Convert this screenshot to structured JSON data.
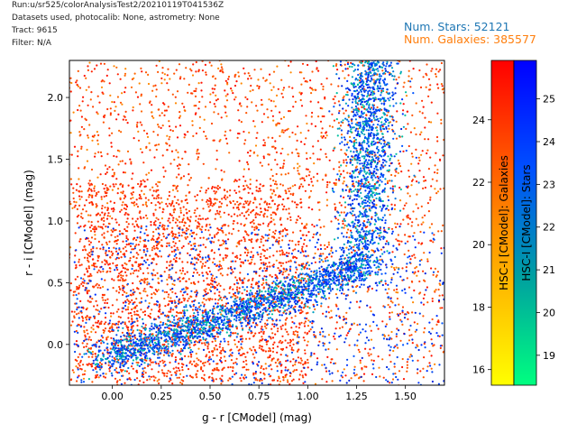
{
  "header": {
    "run": "Run:u/sr525/colorAnalysisTest2/20210119T041536Z",
    "datasets": "Datasets used, photocalib: None, astrometry: None",
    "tract": "Tract: 9615",
    "filter": "Filter: N/A"
  },
  "counts": {
    "stars": "Num. Stars: 52121",
    "galaxies": "Num. Galaxies: 385577",
    "stars_color": "#1f77b4",
    "galaxies_color": "#ff7f0e"
  },
  "chart_data": {
    "type": "scatter",
    "xlabel": "g - r [CModel] (mag)",
    "ylabel": "r - i [CModel] (mag)",
    "xlim": [
      -0.22,
      1.7
    ],
    "ylim": [
      -0.33,
      2.3
    ],
    "xticks": [
      "0.00",
      "0.25",
      "0.50",
      "0.75",
      "1.00",
      "1.25",
      "1.50"
    ],
    "yticks": [
      "0.0",
      "0.5",
      "1.0",
      "1.5",
      "2.0"
    ],
    "series": [
      {
        "name": "Galaxies",
        "colormap": [
          "#ffff00",
          "#ff8c00",
          "#ff0000"
        ],
        "distribution": "broad cloud, densest at g-r -0.2 to 1.0, r-i -0.3 to 1.5"
      },
      {
        "name": "Stars",
        "colormap": [
          "#00ff80",
          "#00a0a0",
          "#0050ff",
          "#0000ff"
        ],
        "distribution": "stellar locus rising from (0.0, -0.1) to (1.3, 0.6), then vertical branch at g-r ~1.3-1.4 up to r-i 2.3"
      }
    ],
    "colorbars": [
      {
        "label": "HSC-I [CModel]: Galaxies",
        "range": [
          15.5,
          25.9
        ],
        "ticks": [
          "16",
          "18",
          "20",
          "22",
          "24"
        ],
        "colors": [
          "#ffff00",
          "#ff8c00",
          "#ff0000"
        ]
      },
      {
        "label": "HSC-I [CModel]: Stars",
        "range": [
          18.3,
          25.9
        ],
        "ticks": [
          "19",
          "20",
          "21",
          "22",
          "23",
          "24",
          "25"
        ],
        "colors": [
          "#00ff80",
          "#00a0a0",
          "#0050ff",
          "#0000ff"
        ]
      }
    ],
    "grid": false
  }
}
